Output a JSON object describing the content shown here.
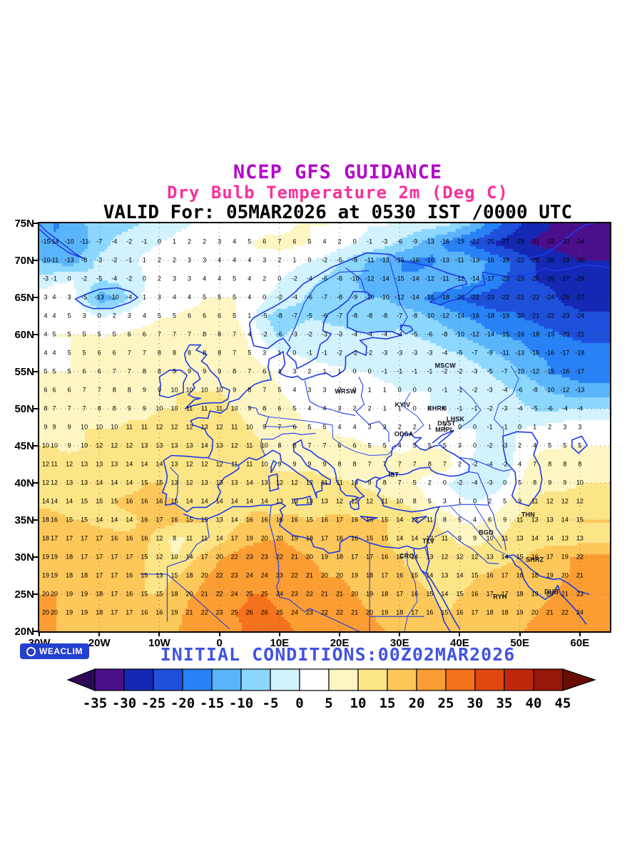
{
  "header": {
    "line1": "NCEP GFS GUIDANCE",
    "line2": "Dry Bulb Temperature 2m (Deg C)",
    "line3": "VALID For: 05MAR2026 at 0530 IST /0000 UTC"
  },
  "footer": {
    "logo": "WEACLIM",
    "initial_conditions": "INITIAL CONDITIONS:00Z02MAR2026"
  },
  "axes": {
    "lat_labels": [
      "75N",
      "70N",
      "65N",
      "60N",
      "55N",
      "50N",
      "45N",
      "40N",
      "35N",
      "30N",
      "25N",
      "20N"
    ],
    "lat_values": [
      75,
      70,
      65,
      60,
      55,
      50,
      45,
      40,
      35,
      30,
      25,
      20
    ],
    "lon_labels": [
      "30W",
      "20W",
      "10W",
      "0",
      "10E",
      "20E",
      "30E",
      "40E",
      "50E",
      "60E"
    ],
    "lon_values": [
      -30,
      -20,
      -10,
      0,
      10,
      20,
      30,
      40,
      50,
      60
    ]
  },
  "colorbar": {
    "tick_labels": [
      "-35",
      "-30",
      "-25",
      "-20",
      "-15",
      "-10",
      "-5",
      "0",
      "5",
      "10",
      "15",
      "20",
      "25",
      "30",
      "35",
      "40",
      "45"
    ],
    "breaks": [
      -35,
      -30,
      -25,
      -20,
      -15,
      -10,
      -5,
      0,
      5,
      10,
      15,
      20,
      25,
      30,
      35,
      40,
      45
    ],
    "colors": [
      "#2b0b57",
      "#4b0f8c",
      "#1428b4",
      "#1e50dc",
      "#2882f5",
      "#5ab4fa",
      "#8cd7fd",
      "#d2f2fe",
      "#ffffff",
      "#fdf6c3",
      "#fce586",
      "#fdc75a",
      "#fb9d33",
      "#f4711d",
      "#e04711",
      "#c0280c",
      "#961607",
      "#6b0c04"
    ]
  },
  "cities": [
    {
      "name": "MSCW",
      "lon": 37.6,
      "lat": 55.8
    },
    {
      "name": "WRSW",
      "lon": 21.0,
      "lat": 52.3
    },
    {
      "name": "KYIV",
      "lon": 30.5,
      "lat": 50.5
    },
    {
      "name": "KHRK",
      "lon": 36.2,
      "lat": 50.0
    },
    {
      "name": "LHSK",
      "lon": 39.3,
      "lat": 48.6
    },
    {
      "name": "DNST",
      "lon": 37.8,
      "lat": 48.0
    },
    {
      "name": "MRPL",
      "lon": 37.5,
      "lat": 47.1
    },
    {
      "name": "ODSA",
      "lon": 30.7,
      "lat": 46.5
    },
    {
      "name": "IST",
      "lon": 29.0,
      "lat": 41.1
    },
    {
      "name": "TLV",
      "lon": 34.8,
      "lat": 32.1
    },
    {
      "name": "CRO",
      "lon": 31.2,
      "lat": 30.1
    },
    {
      "name": "BGD",
      "lon": 44.4,
      "lat": 33.3
    },
    {
      "name": "THN",
      "lon": 51.4,
      "lat": 35.7
    },
    {
      "name": "SHRZ",
      "lon": 52.5,
      "lat": 29.6
    },
    {
      "name": "RYH",
      "lon": 46.7,
      "lat": 24.6
    },
    {
      "name": "DUB",
      "lon": 55.3,
      "lat": 25.3
    }
  ],
  "chart_data": {
    "type": "heatmap",
    "title": "Dry Bulb Temperature 2m (Deg C)",
    "units": "Deg C",
    "lon_range": [
      -30,
      65
    ],
    "lat_range": [
      20,
      75
    ],
    "grid_lons": [
      -30,
      -27.5,
      -25,
      -22.5,
      -20,
      -17.5,
      -15,
      -12.5,
      -10,
      -7.5,
      -5,
      -2.5,
      0,
      2.5,
      5,
      7.5,
      10,
      12.5,
      15,
      17.5,
      20,
      22.5,
      25,
      27.5,
      30,
      32.5,
      35,
      37.5,
      40,
      42.5,
      45,
      47.5,
      50,
      52.5,
      55,
      57.5,
      60
    ],
    "grid_lats": [
      75,
      72.5,
      70,
      67.5,
      65,
      62.5,
      60,
      57.5,
      55,
      52.5,
      50,
      47.5,
      45,
      42.5,
      40,
      37.5,
      35,
      32.5,
      30,
      27.5,
      25,
      22.5,
      20
    ],
    "values_degC": [
      [
        -11,
        -16,
        -12,
        -10,
        -8,
        -7,
        -6,
        -4,
        -2,
        -1,
        0,
        0,
        1,
        2,
        2,
        4,
        3,
        5,
        5,
        5,
        4,
        1,
        0,
        0,
        -1,
        -2,
        -3,
        -4,
        -8,
        -12,
        -17,
        -21,
        -25,
        -28,
        -30,
        -33,
        -35
      ],
      [
        -15,
        -14,
        -10,
        -11,
        -7,
        -4,
        -2,
        -1,
        0,
        1,
        2,
        2,
        3,
        4,
        5,
        6,
        7,
        6,
        5,
        4,
        2,
        0,
        -1,
        -3,
        -6,
        -9,
        -13,
        -16,
        -19,
        -22,
        -25,
        -27,
        -29,
        -31,
        -32,
        -33,
        -34
      ],
      [
        -10,
        -11,
        -13,
        -8,
        -3,
        -2,
        -1,
        1,
        2,
        2,
        3,
        3,
        4,
        4,
        4,
        3,
        2,
        1,
        0,
        -2,
        -5,
        -8,
        -11,
        -13,
        -15,
        -16,
        -16,
        -13,
        -11,
        -13,
        -16,
        -19,
        -22,
        -25,
        -26,
        -28,
        -30
      ],
      [
        -3,
        -1,
        0,
        -2,
        -5,
        -4,
        -2,
        0,
        2,
        3,
        3,
        4,
        4,
        5,
        4,
        2,
        0,
        -2,
        -4,
        -6,
        -8,
        -10,
        -12,
        -14,
        -15,
        -14,
        -12,
        -11,
        -12,
        -14,
        -17,
        -20,
        -23,
        -25,
        -26,
        -27,
        -29
      ],
      [
        3,
        4,
        3,
        -5,
        -13,
        -10,
        -4,
        1,
        3,
        4,
        4,
        5,
        5,
        5,
        4,
        0,
        -2,
        -4,
        -6,
        -7,
        -8,
        -9,
        -10,
        -10,
        -12,
        -14,
        -16,
        -18,
        -20,
        -22,
        -23,
        -22,
        -21,
        -22,
        -24,
        -26,
        -27
      ],
      [
        4,
        4,
        5,
        3,
        0,
        2,
        3,
        4,
        5,
        5,
        6,
        6,
        6,
        5,
        1,
        -5,
        -8,
        -7,
        -5,
        -6,
        -7,
        -8,
        -8,
        -8,
        -7,
        -8,
        -10,
        -12,
        -14,
        -16,
        -18,
        -19,
        -20,
        -21,
        -22,
        -23,
        -24
      ],
      [
        4,
        5,
        5,
        5,
        5,
        5,
        6,
        6,
        7,
        7,
        7,
        8,
        8,
        7,
        4,
        -2,
        -6,
        -3,
        -2,
        -3,
        -3,
        -4,
        -4,
        -4,
        -4,
        -5,
        -6,
        -8,
        -10,
        -12,
        -14,
        -15,
        -16,
        -18,
        -19,
        -20,
        -21
      ],
      [
        4,
        4,
        5,
        5,
        6,
        6,
        7,
        7,
        8,
        8,
        8,
        8,
        8,
        7,
        5,
        3,
        1,
        0,
        -1,
        -1,
        -2,
        -2,
        -2,
        -3,
        -3,
        -3,
        -3,
        -4,
        -5,
        -7,
        -9,
        -11,
        -13,
        -15,
        -16,
        -17,
        -18
      ],
      [
        5,
        5,
        5,
        6,
        6,
        7,
        7,
        8,
        8,
        9,
        9,
        9,
        9,
        8,
        7,
        6,
        4,
        3,
        2,
        1,
        1,
        0,
        0,
        -1,
        -1,
        -1,
        -1,
        -2,
        -2,
        -3,
        -5,
        -7,
        -10,
        -12,
        -15,
        -16,
        -17
      ],
      [
        6,
        6,
        6,
        7,
        7,
        8,
        8,
        9,
        9,
        10,
        10,
        10,
        10,
        9,
        8,
        7,
        5,
        4,
        3,
        3,
        2,
        2,
        1,
        1,
        0,
        0,
        0,
        -1,
        -1,
        -2,
        -3,
        -4,
        -6,
        -8,
        -10,
        -12,
        -13
      ],
      [
        8,
        7,
        7,
        7,
        8,
        8,
        9,
        9,
        10,
        10,
        11,
        11,
        11,
        10,
        9,
        8,
        6,
        5,
        4,
        4,
        3,
        2,
        2,
        1,
        1,
        0,
        0,
        0,
        -1,
        -1,
        -2,
        -3,
        -4,
        -5,
        -6,
        -4,
        -4
      ],
      [
        9,
        9,
        9,
        10,
        10,
        10,
        11,
        11,
        12,
        12,
        12,
        13,
        12,
        11,
        10,
        9,
        7,
        6,
        5,
        5,
        4,
        4,
        3,
        3,
        2,
        2,
        1,
        1,
        0,
        0,
        -1,
        -1,
        0,
        1,
        2,
        3,
        3
      ],
      [
        10,
        10,
        9,
        10,
        12,
        12,
        12,
        13,
        13,
        13,
        13,
        14,
        13,
        12,
        11,
        10,
        8,
        8,
        7,
        7,
        6,
        6,
        5,
        5,
        4,
        5,
        5,
        5,
        3,
        0,
        -2,
        -3,
        2,
        4,
        5,
        5,
        5
      ],
      [
        12,
        11,
        12,
        13,
        13,
        13,
        14,
        14,
        14,
        13,
        12,
        12,
        12,
        11,
        11,
        10,
        9,
        9,
        9,
        9,
        8,
        8,
        7,
        7,
        7,
        7,
        8,
        7,
        2,
        -2,
        -4,
        -2,
        4,
        7,
        8,
        8,
        8
      ],
      [
        12,
        12,
        13,
        13,
        14,
        14,
        14,
        15,
        15,
        13,
        12,
        13,
        13,
        13,
        14,
        13,
        12,
        12,
        12,
        11,
        11,
        10,
        9,
        8,
        7,
        5,
        2,
        0,
        -2,
        -4,
        -3,
        0,
        5,
        8,
        9,
        9,
        10
      ],
      [
        14,
        14,
        14,
        15,
        15,
        15,
        16,
        16,
        16,
        15,
        14,
        14,
        14,
        14,
        14,
        14,
        13,
        13,
        13,
        13,
        12,
        12,
        12,
        11,
        10,
        8,
        5,
        3,
        1,
        0,
        2,
        5,
        9,
        11,
        12,
        12,
        12
      ],
      [
        18,
        16,
        15,
        15,
        14,
        14,
        14,
        16,
        17,
        16,
        15,
        15,
        13,
        14,
        16,
        16,
        16,
        16,
        15,
        16,
        17,
        16,
        16,
        15,
        14,
        13,
        11,
        8,
        5,
        4,
        6,
        9,
        11,
        13,
        13,
        14,
        15
      ],
      [
        18,
        17,
        17,
        17,
        17,
        16,
        16,
        16,
        12,
        8,
        11,
        11,
        14,
        17,
        19,
        20,
        20,
        19,
        18,
        17,
        16,
        16,
        15,
        15,
        14,
        14,
        13,
        11,
        9,
        9,
        10,
        11,
        13,
        14,
        14,
        13,
        13
      ],
      [
        19,
        19,
        18,
        17,
        17,
        17,
        17,
        15,
        12,
        10,
        14,
        17,
        20,
        22,
        23,
        23,
        22,
        21,
        20,
        19,
        18,
        17,
        17,
        16,
        15,
        14,
        13,
        12,
        12,
        12,
        13,
        14,
        15,
        16,
        17,
        19,
        22
      ],
      [
        19,
        19,
        18,
        18,
        17,
        17,
        16,
        15,
        13,
        15,
        18,
        20,
        22,
        23,
        24,
        24,
        23,
        22,
        21,
        20,
        20,
        19,
        18,
        17,
        16,
        15,
        14,
        13,
        14,
        15,
        16,
        17,
        18,
        18,
        19,
        20,
        21
      ],
      [
        20,
        20,
        19,
        19,
        18,
        17,
        16,
        15,
        15,
        18,
        20,
        21,
        22,
        24,
        25,
        25,
        24,
        23,
        22,
        21,
        21,
        20,
        19,
        18,
        17,
        16,
        15,
        14,
        15,
        16,
        17,
        17,
        18,
        19,
        20,
        21,
        23
      ],
      [
        20,
        20,
        19,
        19,
        18,
        17,
        17,
        16,
        16,
        19,
        21,
        22,
        23,
        25,
        26,
        26,
        25,
        24,
        23,
        22,
        22,
        21,
        20,
        19,
        18,
        17,
        16,
        15,
        16,
        17,
        18,
        18,
        19,
        20,
        21,
        22,
        24
      ],
      [
        20,
        20,
        19,
        19,
        17,
        17,
        16,
        16,
        17,
        20,
        21,
        22,
        23,
        24,
        26,
        27,
        26,
        25,
        24,
        23,
        22,
        22,
        21,
        20,
        19,
        18,
        17,
        16,
        17,
        18,
        19,
        19,
        20,
        21,
        22,
        23,
        24
      ]
    ]
  }
}
